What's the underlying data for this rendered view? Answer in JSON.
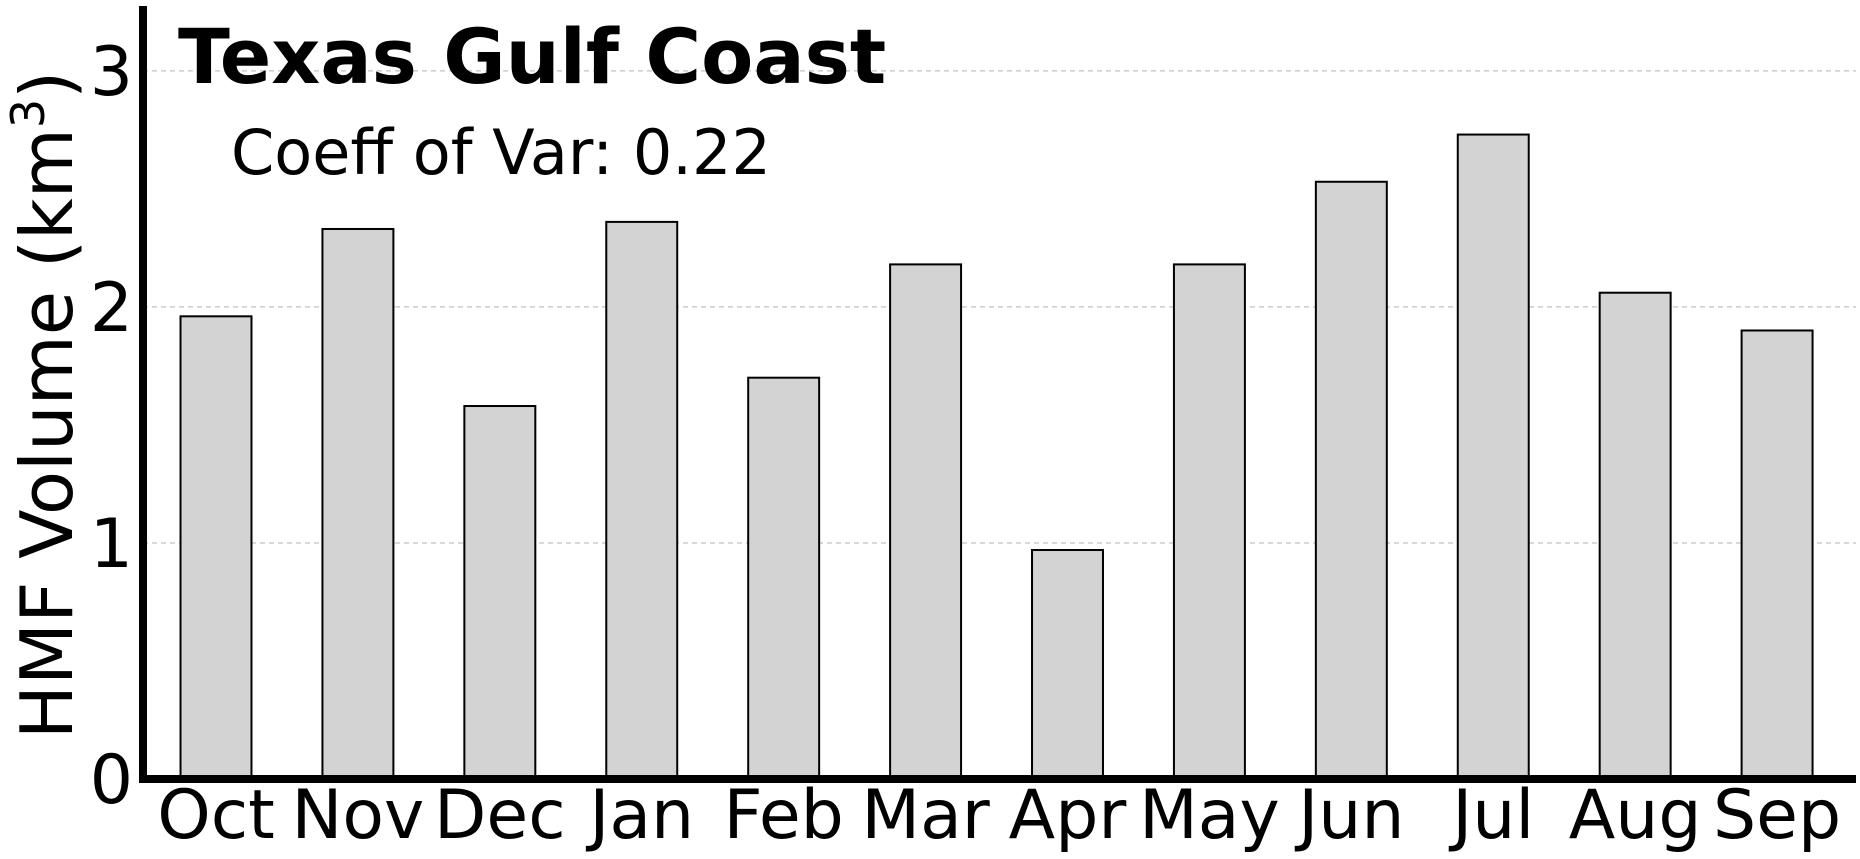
{
  "chart_data": {
    "type": "bar",
    "title": "Texas Gulf Coast",
    "annotation": "Coeff of Var: 0.22",
    "xlabel": "",
    "ylabel": "HMF Volume (km",
    "ylabel_sup": "3",
    "ylabel_close": ")",
    "categories": [
      "Oct",
      "Nov",
      "Dec",
      "Jan",
      "Feb",
      "Mar",
      "Apr",
      "May",
      "Jun",
      "Jul",
      "Aug",
      "Sep"
    ],
    "values": [
      1.96,
      2.33,
      1.58,
      2.36,
      1.7,
      2.18,
      0.97,
      2.18,
      2.53,
      2.73,
      2.06,
      1.9
    ],
    "yticks": [
      "0",
      "1",
      "2",
      "3"
    ],
    "ytick_values": [
      0,
      1,
      2,
      3
    ],
    "ylim": [
      0,
      3.3
    ],
    "grid": "horizontal dashed",
    "legend": "none",
    "colors": {
      "bar_fill": "#d3d3d3",
      "bar_edge": "#000000",
      "grid": "#cccccc",
      "axis": "#000000"
    }
  }
}
